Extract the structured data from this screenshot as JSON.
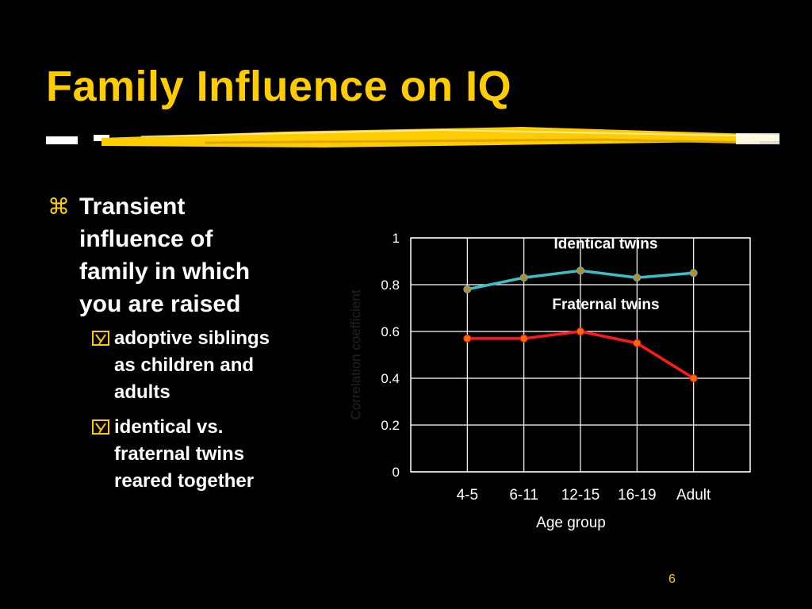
{
  "slide": {
    "title": "Family Influence on IQ",
    "page_number": "6",
    "accent_color": "#ffcc00",
    "text_color": "#ffffff",
    "background": "#000000"
  },
  "bullets": {
    "main_icon": "command-key-icon",
    "main_text": "Transient influence of family in which you are raised",
    "main_lines": [
      "Transient",
      "influence of",
      "family in which",
      "you are raised"
    ],
    "sub_icon": "checkbox-y-icon",
    "sub_items": [
      {
        "text": "adoptive siblings as children and adults",
        "lines": [
          "adoptive siblings",
          "as children and",
          "adults"
        ]
      },
      {
        "text": "identical vs. fraternal twins reared together",
        "lines": [
          "identical vs.",
          "fraternal twins",
          "reared together"
        ]
      }
    ]
  },
  "chart_data": {
    "type": "line",
    "categories": [
      "4-5",
      "6-11",
      "12-15",
      "16-19",
      "Adult"
    ],
    "xlabel": "Age group",
    "ylabel": "Correlation coefficient",
    "ylim": [
      0,
      1
    ],
    "yticks": [
      "0",
      "0.2",
      "0.4",
      "0.6",
      "0.8",
      "1"
    ],
    "grid": true,
    "series": [
      {
        "name": "Identical twins",
        "values": [
          0.78,
          0.83,
          0.86,
          0.83,
          0.85
        ],
        "color": "#3cc0c8",
        "marker_color": "#c08a2a"
      },
      {
        "name": "Fraternal twins",
        "values": [
          0.57,
          0.57,
          0.6,
          0.55,
          0.4
        ],
        "color": "#ff1a1a",
        "marker_color": "#ff6a00"
      }
    ]
  }
}
